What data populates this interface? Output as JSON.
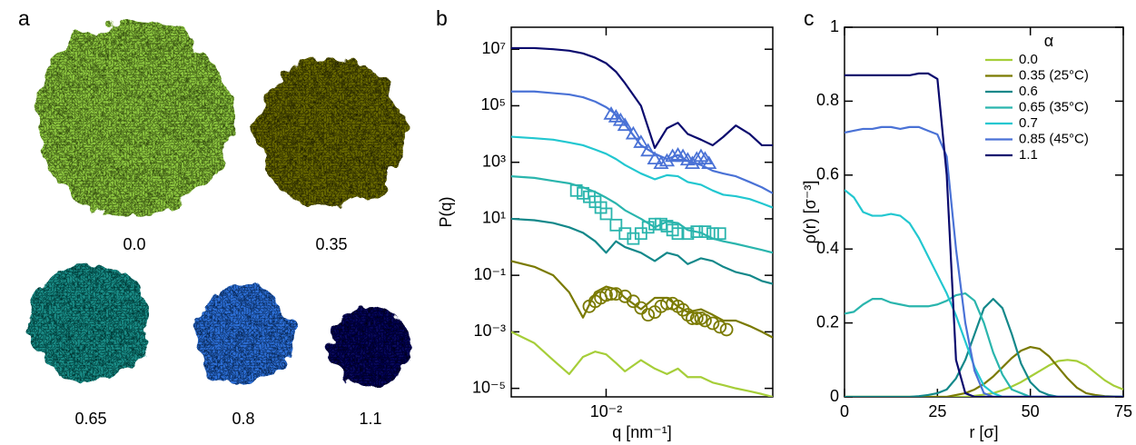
{
  "panel_a": {
    "label": "a",
    "images": [
      {
        "label": "0.0",
        "color": "#8dc63f"
      },
      {
        "label": "0.35",
        "color": "#6b6a05"
      },
      {
        "label": "0.65",
        "color": "#1f8e88"
      },
      {
        "label": "0.8",
        "color": "#2f6fd8"
      },
      {
        "label": "1.1",
        "color": "#07075a"
      }
    ]
  },
  "chart_data": [
    {
      "panel_label": "b",
      "type": "line",
      "x_scale": "log",
      "y_scale": "log",
      "xlabel": "q [nm⁻¹]",
      "ylabel": "P(q)",
      "xlim": [
        0.004,
        0.05
      ],
      "ylim": [
        5e-06,
        60000000.0
      ],
      "xticks": [
        {
          "value": 0.01,
          "label": "10⁻²"
        }
      ],
      "yticks": [
        {
          "value": 1e-05,
          "label": "10⁻⁵"
        },
        {
          "value": 0.001,
          "label": "10⁻³"
        },
        {
          "value": 0.1,
          "label": "10⁻¹"
        },
        {
          "value": 10,
          "label": "10¹"
        },
        {
          "value": 1000,
          "label": "10³"
        },
        {
          "value": 100000,
          "label": "10⁵"
        },
        {
          "value": 10000000,
          "label": "10⁷"
        }
      ],
      "x": [
        0.004,
        0.005,
        0.006,
        0.007,
        0.008,
        0.009,
        0.01,
        0.011,
        0.012,
        0.014,
        0.016,
        0.018,
        0.02,
        0.022,
        0.025,
        0.028,
        0.031,
        0.035,
        0.04,
        0.045,
        0.05
      ],
      "series": [
        {
          "color": "#a6ce39",
          "values": [
            0.001,
            0.0004,
            0.0001,
            3.2e-05,
            0.00013,
            0.0002,
            0.00016,
            7.9e-05,
            4e-05,
            0.0001,
            5e-05,
            3.2e-05,
            5e-05,
            2.5e-05,
            2.5e-05,
            1.6e-05,
            1.3e-05,
            1e-05,
            7.9e-06,
            6.3e-06,
            5e-06
          ]
        },
        {
          "color": "#7a7a00",
          "values": [
            0.32,
            0.2,
            0.1,
            0.025,
            0.0032,
            0.025,
            0.04,
            0.032,
            0.016,
            0.0063,
            0.016,
            0.016,
            0.0079,
            0.005,
            0.0063,
            0.004,
            0.0025,
            0.0025,
            0.0016,
            0.001,
            0.00063
          ]
        },
        {
          "color": "#13888a",
          "values": [
            10,
            8.9,
            7.1,
            5,
            3.2,
            1.6,
            0.63,
            1.6,
            1,
            0.63,
            0.32,
            0.63,
            0.5,
            0.25,
            0.4,
            0.32,
            0.2,
            0.13,
            0.1,
            0.063,
            0.05
          ]
        },
        {
          "color": "#2ab5ad",
          "values": [
            320,
            280,
            220,
            180,
            130,
            89,
            56,
            35,
            20,
            10,
            5,
            7.9,
            7.1,
            4,
            3.2,
            2,
            1.6,
            1.3,
            1,
            0.79,
            0.63
          ]
        },
        {
          "color": "#22c7d0",
          "values": [
            8000,
            7100,
            6300,
            5000,
            4000,
            2800,
            2000,
            1300,
            800,
            400,
            250,
            350,
            320,
            200,
            160,
            100,
            71,
            63,
            50,
            35,
            25
          ]
        },
        {
          "color": "#4a72d6",
          "values": [
            320000,
            320000,
            280000,
            250000,
            200000,
            140000,
            89000,
            50000,
            22000,
            4000,
            2000,
            1300,
            1800,
            1100,
            800,
            500,
            400,
            320,
            200,
            130,
            80
          ]
        },
        {
          "color": "#0a0a6e",
          "values": [
            11000000,
            11000000,
            10000000,
            8900000,
            7100000,
            5000000,
            3200000,
            1600000,
            630000,
            100000,
            3200,
            16000,
            25000,
            10000,
            6300,
            4000,
            7900,
            20000,
            10000,
            4000,
            4000
          ]
        },
        {
          "marker": "triangle",
          "color": "#4a72d6",
          "x": [
            0.0105,
            0.011,
            0.0115,
            0.012,
            0.013,
            0.014,
            0.015,
            0.016,
            0.017,
            0.018,
            0.019,
            0.02,
            0.021,
            0.022,
            0.023,
            0.024,
            0.025,
            0.026,
            0.027
          ],
          "values": [
            50000,
            40000,
            30000,
            20000,
            10000,
            5000,
            2500,
            1300,
            900,
            1100,
            1600,
            1800,
            1600,
            1200,
            900,
            1300,
            1600,
            1300,
            900
          ]
        },
        {
          "marker": "square",
          "color": "#2ab5ad",
          "x": [
            0.0075,
            0.008,
            0.0085,
            0.009,
            0.0095,
            0.01,
            0.011,
            0.012,
            0.013,
            0.014,
            0.015,
            0.016,
            0.017,
            0.018,
            0.019,
            0.02,
            0.022,
            0.024,
            0.026,
            0.028,
            0.03
          ],
          "values": [
            100,
            80,
            60,
            40,
            25,
            15,
            6,
            3,
            2,
            3,
            5,
            6.5,
            6.5,
            5.5,
            4,
            3,
            3,
            3.5,
            3.5,
            3,
            3
          ]
        },
        {
          "marker": "circle",
          "color": "#7a7a00",
          "x": [
            0.0085,
            0.009,
            0.0095,
            0.01,
            0.0105,
            0.011,
            0.012,
            0.013,
            0.014,
            0.015,
            0.016,
            0.017,
            0.018,
            0.019,
            0.02,
            0.021,
            0.022,
            0.023,
            0.024,
            0.025,
            0.026,
            0.028,
            0.03,
            0.032
          ],
          "values": [
            0.008,
            0.012,
            0.016,
            0.02,
            0.022,
            0.022,
            0.018,
            0.012,
            0.007,
            0.004,
            0.005,
            0.008,
            0.01,
            0.01,
            0.008,
            0.006,
            0.004,
            0.003,
            0.003,
            0.003,
            0.0025,
            0.002,
            0.0015,
            0.0012
          ]
        }
      ]
    },
    {
      "panel_label": "c",
      "type": "line",
      "x_scale": "linear",
      "y_scale": "linear",
      "xlabel": "r [σ]",
      "ylabel": "ρ(r) [σ⁻³]",
      "xlim": [
        0,
        75
      ],
      "ylim": [
        0,
        1
      ],
      "xticks": [
        0,
        25,
        50,
        75
      ],
      "yticks": [
        0,
        0.2,
        0.4,
        0.6,
        0.8,
        1
      ],
      "legend_title": "α",
      "legend": "upper right",
      "x": [
        0,
        2.5,
        5,
        7.5,
        10,
        12.5,
        15,
        17.5,
        20,
        22.5,
        25,
        27.5,
        30,
        32.5,
        35,
        37.5,
        40,
        42.5,
        45,
        47.5,
        50,
        52.5,
        55,
        57.5,
        60,
        62.5,
        65,
        67.5,
        70,
        72.5,
        75
      ],
      "series": [
        {
          "name": "0.0",
          "color": "#a6ce39",
          "values": [
            0,
            0,
            0,
            0,
            0,
            0,
            0,
            0,
            0,
            0,
            0,
            0,
            0,
            0,
            0.003,
            0.006,
            0.01,
            0.018,
            0.028,
            0.04,
            0.055,
            0.07,
            0.085,
            0.097,
            0.1,
            0.097,
            0.085,
            0.065,
            0.045,
            0.03,
            0.02
          ]
        },
        {
          "name": "0.35 (25°C)",
          "color": "#7a7a00",
          "values": [
            0,
            0,
            0,
            0,
            0,
            0,
            0,
            0,
            0,
            0,
            0,
            0,
            0.005,
            0.01,
            0.02,
            0.035,
            0.055,
            0.08,
            0.105,
            0.125,
            0.135,
            0.13,
            0.11,
            0.08,
            0.05,
            0.025,
            0.01,
            0.005,
            0.002,
            0.001,
            0
          ]
        },
        {
          "name": "0.6",
          "color": "#13888a",
          "values": [
            0,
            0,
            0,
            0,
            0,
            0,
            0,
            0,
            0.002,
            0.005,
            0.01,
            0.02,
            0.05,
            0.1,
            0.17,
            0.24,
            0.265,
            0.24,
            0.17,
            0.09,
            0.04,
            0.015,
            0.005,
            0,
            0,
            0,
            0,
            0,
            0,
            0,
            0
          ]
        },
        {
          "name": "0.65 (35°C)",
          "color": "#2ab5ad",
          "values": [
            0.225,
            0.23,
            0.25,
            0.265,
            0.265,
            0.255,
            0.25,
            0.245,
            0.245,
            0.245,
            0.25,
            0.26,
            0.275,
            0.28,
            0.26,
            0.2,
            0.12,
            0.06,
            0.02,
            0.01,
            0,
            0,
            0,
            0,
            0,
            0,
            0,
            0,
            0,
            0,
            0
          ]
        },
        {
          "name": "0.7",
          "color": "#22c7d0",
          "values": [
            0.56,
            0.54,
            0.5,
            0.49,
            0.49,
            0.495,
            0.49,
            0.47,
            0.43,
            0.38,
            0.33,
            0.28,
            0.22,
            0.15,
            0.08,
            0.03,
            0.01,
            0,
            0,
            0,
            0,
            0,
            0,
            0,
            0,
            0,
            0,
            0,
            0,
            0,
            0
          ]
        },
        {
          "name": "0.85 (45°C)",
          "color": "#4a72d6",
          "values": [
            0.715,
            0.72,
            0.725,
            0.725,
            0.73,
            0.73,
            0.725,
            0.73,
            0.73,
            0.72,
            0.71,
            0.65,
            0.4,
            0.2,
            0.07,
            0.01,
            0,
            0,
            0,
            0,
            0,
            0,
            0,
            0,
            0,
            0,
            0,
            0,
            0,
            0,
            0
          ]
        },
        {
          "name": "1.1",
          "color": "#0a0a6e",
          "values": [
            0.87,
            0.87,
            0.87,
            0.87,
            0.87,
            0.87,
            0.87,
            0.87,
            0.875,
            0.875,
            0.86,
            0.6,
            0.1,
            0.01,
            0,
            0,
            0,
            0,
            0,
            0,
            0,
            0,
            0,
            0,
            0,
            0,
            0,
            0,
            0,
            0,
            0
          ]
        }
      ]
    }
  ]
}
